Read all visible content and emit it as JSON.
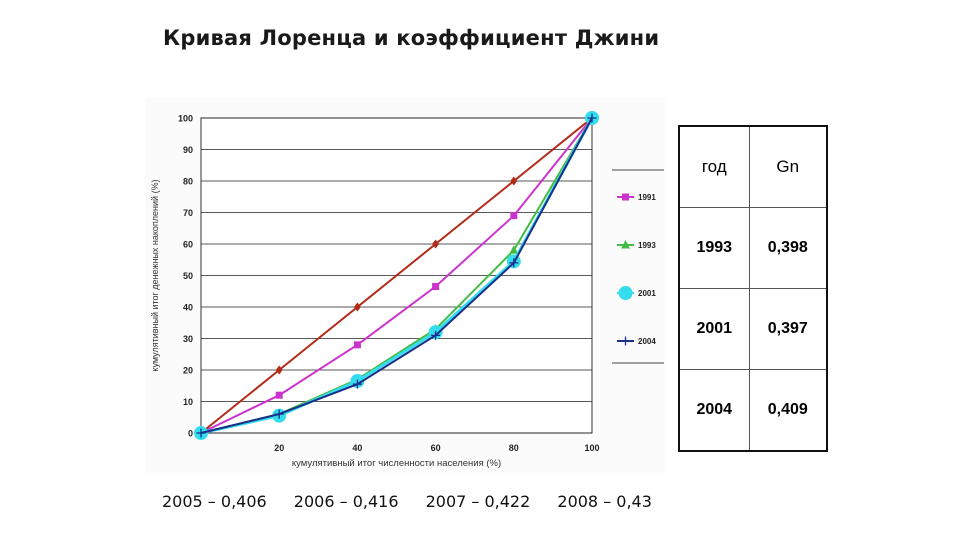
{
  "title": "Кривая Лоренца и коэффициент Джини",
  "chart_data": {
    "type": "line",
    "xlabel": "кумулятивный итог численности населения (%)",
    "ylabel": "кумулятивный итог денежных накоплений (%)",
    "xlim": [
      0,
      100
    ],
    "ylim": [
      0,
      100
    ],
    "x_ticks": [
      20,
      40,
      60,
      80,
      100
    ],
    "y_ticks": [
      0,
      10,
      20,
      30,
      40,
      50,
      60,
      70,
      80,
      90,
      100
    ],
    "grid": true,
    "legend_position": "right",
    "x": [
      0,
      20,
      40,
      60,
      80,
      100
    ],
    "series": [
      {
        "name": "",
        "color": "#b22a18",
        "marker": "diamond",
        "values": [
          0,
          20,
          40,
          60,
          80,
          100
        ]
      },
      {
        "name": "1991",
        "color": "#cc33cc",
        "marker": "square",
        "values": [
          0,
          12,
          28,
          46.5,
          69,
          100
        ]
      },
      {
        "name": "1993",
        "color": "#44bb44",
        "marker": "triangle",
        "values": [
          0,
          6,
          17,
          33,
          58,
          100
        ]
      },
      {
        "name": "2001",
        "color": "#33ddee",
        "marker": "circle",
        "values": [
          0,
          5.5,
          16.5,
          32,
          54.5,
          100
        ]
      },
      {
        "name": "2004",
        "color": "#1a2e8a",
        "marker": "plus",
        "values": [
          0,
          6,
          15.5,
          31,
          54,
          100
        ]
      }
    ]
  },
  "table": {
    "headers": [
      "год",
      "Gn"
    ],
    "rows": [
      [
        "1993",
        "0,398"
      ],
      [
        "2001",
        "0,397"
      ],
      [
        "2004",
        "0,409"
      ]
    ]
  },
  "footer": [
    "2005 – 0,406",
    "2006 – 0,416",
    "2007 – 0,422",
    "2008 – 0,43"
  ]
}
